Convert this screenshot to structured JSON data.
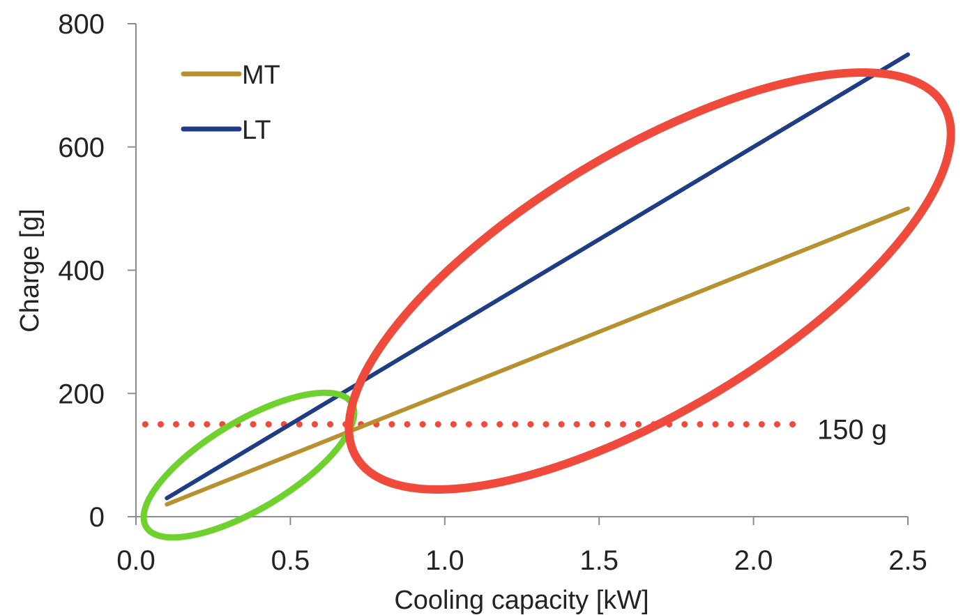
{
  "chart_data": {
    "type": "line",
    "title": "",
    "xlabel": "Cooling capacity [kW]",
    "ylabel": "Charge [g]",
    "xlim": [
      0,
      2.5
    ],
    "ylim": [
      0,
      800
    ],
    "x_ticks": [
      "0.0",
      "0.5",
      "1.0",
      "1.5",
      "2.0",
      "2.5"
    ],
    "y_ticks": [
      "0",
      "200",
      "400",
      "600",
      "800"
    ],
    "grid": false,
    "legend_position": "top-left",
    "series": [
      {
        "name": "MT",
        "color": "#b8902f",
        "x": [
          0.1,
          2.5
        ],
        "y": [
          20,
          500
        ]
      },
      {
        "name": "LT",
        "color": "#1f3d86",
        "x": [
          0.1,
          2.5
        ],
        "y": [
          30,
          750
        ]
      }
    ],
    "reference_line": {
      "y": 150,
      "label": "150 g",
      "color": "#f04a3c",
      "style": "dotted",
      "x_range": [
        0.03,
        2.14
      ]
    },
    "annotations": [
      {
        "shape": "ellipse",
        "color": "#6fd12d",
        "description": "green ellipse around low-capacity region"
      },
      {
        "shape": "ellipse",
        "color": "#f04a3c",
        "description": "red ellipse around high-capacity region"
      }
    ]
  }
}
